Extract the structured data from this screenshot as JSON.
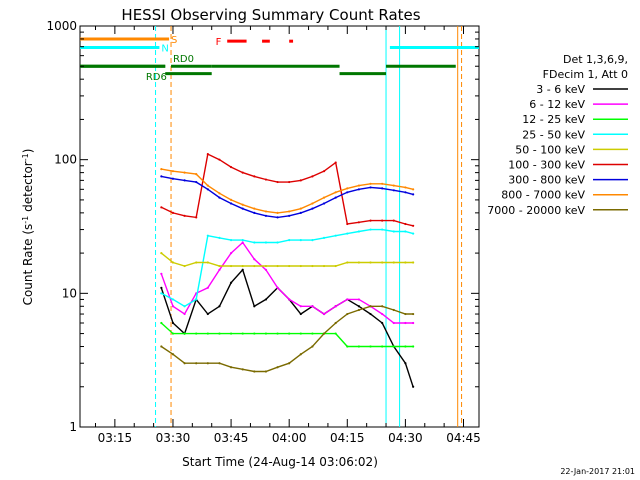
{
  "chart_data": {
    "type": "line",
    "title": "HESSI Observing Summary Count Rates",
    "xlabel": "Start Time (24-Aug-14 03:06:02)",
    "ylabel_main": "Count Rate (s",
    "ylabel_sup1": "-1",
    "ylabel_mid": " detector",
    "ylabel_sup2": "-1",
    "ylabel_end": ")",
    "yscale": "log",
    "ylim": [
      1,
      1000
    ],
    "xlim_minutes": [
      186,
      289
    ],
    "x_unit": "minutes of day (UT)",
    "x_ticks": [
      {
        "t": 195,
        "label": "03:15"
      },
      {
        "t": 210,
        "label": "03:30"
      },
      {
        "t": 225,
        "label": "03:45"
      },
      {
        "t": 240,
        "label": "04:00"
      },
      {
        "t": 255,
        "label": "04:15"
      },
      {
        "t": 270,
        "label": "04:30"
      },
      {
        "t": 285,
        "label": "04:45"
      }
    ],
    "y_ticks": [
      {
        "v": 1,
        "label": "1"
      },
      {
        "v": 10,
        "label": "10"
      },
      {
        "v": 100,
        "label": "100"
      },
      {
        "v": 1000,
        "label": "1000"
      }
    ],
    "legend_header": [
      "Det 1,3,6,9,",
      "FDecim 1, Att 0"
    ],
    "legend_position": "right",
    "series": [
      {
        "name": "3 - 6 keV",
        "color": "#000000",
        "x": [
          207,
          210,
          213,
          216,
          219,
          222,
          225,
          228,
          231,
          234,
          237,
          240,
          243,
          246,
          249,
          252,
          255,
          258,
          261,
          264,
          267,
          270,
          272
        ],
        "values": [
          11,
          6,
          5,
          9,
          7,
          8,
          12,
          15,
          8,
          9,
          11,
          9,
          7,
          8,
          7,
          8,
          9,
          8,
          7,
          6,
          4,
          3,
          2
        ]
      },
      {
        "name": "6 - 12 keV",
        "color": "#ff00ff",
        "x": [
          207,
          210,
          213,
          216,
          219,
          222,
          225,
          228,
          231,
          234,
          237,
          240,
          243,
          246,
          249,
          252,
          255,
          258,
          261,
          264,
          267,
          270,
          272
        ],
        "values": [
          14,
          8,
          7,
          10,
          11,
          15,
          20,
          24,
          18,
          15,
          11,
          9,
          8,
          8,
          7,
          8,
          9,
          9,
          8,
          7,
          6,
          6,
          6
        ]
      },
      {
        "name": "12 - 25 keV",
        "color": "#00ff00",
        "x": [
          207,
          210,
          213,
          216,
          219,
          222,
          225,
          228,
          231,
          234,
          237,
          240,
          243,
          246,
          249,
          252,
          255,
          258,
          261,
          264,
          267,
          270,
          272
        ],
        "values": [
          6,
          5,
          5,
          5,
          5,
          5,
          5,
          5,
          5,
          5,
          5,
          5,
          5,
          5,
          5,
          5,
          4,
          4,
          4,
          4,
          4,
          4,
          4
        ]
      },
      {
        "name": "25 - 50 keV",
        "color": "#00ffff",
        "x": [
          207,
          210,
          213,
          216,
          219,
          222,
          225,
          228,
          231,
          234,
          237,
          240,
          243,
          246,
          249,
          252,
          255,
          258,
          261,
          264,
          267,
          270,
          272
        ],
        "values": [
          10,
          9,
          8,
          9,
          27,
          26,
          25,
          25,
          24,
          24,
          24,
          25,
          25,
          25,
          26,
          27,
          28,
          29,
          30,
          30,
          29,
          29,
          28
        ]
      },
      {
        "name": "50 - 100 keV",
        "color": "#cccc00",
        "x": [
          207,
          210,
          213,
          216,
          219,
          222,
          225,
          228,
          231,
          234,
          237,
          240,
          243,
          246,
          249,
          252,
          255,
          258,
          261,
          264,
          267,
          270,
          272
        ],
        "values": [
          20,
          17,
          16,
          17,
          17,
          16,
          16,
          16,
          16,
          16,
          16,
          16,
          16,
          16,
          16,
          16,
          17,
          17,
          17,
          17,
          17,
          17,
          17
        ]
      },
      {
        "name": "100 - 300 keV",
        "color": "#dd0000",
        "x": [
          207,
          210,
          213,
          216,
          219,
          222,
          225,
          228,
          231,
          234,
          237,
          240,
          243,
          246,
          249,
          252,
          255,
          258,
          261,
          264,
          267,
          270,
          272
        ],
        "values": [
          44,
          40,
          38,
          37,
          110,
          100,
          88,
          80,
          75,
          71,
          68,
          68,
          70,
          75,
          82,
          95,
          33,
          34,
          35,
          35,
          35,
          33,
          32
        ]
      },
      {
        "name": "300 - 800 keV",
        "color": "#0000dd",
        "x": [
          207,
          210,
          213,
          216,
          219,
          222,
          225,
          228,
          231,
          234,
          237,
          240,
          243,
          246,
          249,
          252,
          255,
          258,
          261,
          264,
          267,
          270,
          272
        ],
        "values": [
          75,
          72,
          70,
          68,
          60,
          52,
          47,
          43,
          40,
          38,
          37,
          38,
          40,
          43,
          47,
          52,
          57,
          60,
          62,
          61,
          59,
          57,
          55
        ]
      },
      {
        "name": "800 - 7000 keV",
        "color": "#ff8800",
        "x": [
          207,
          210,
          213,
          216,
          219,
          222,
          225,
          228,
          231,
          234,
          237,
          240,
          243,
          246,
          249,
          252,
          255,
          258,
          261,
          264,
          267,
          270,
          272
        ],
        "values": [
          85,
          82,
          80,
          78,
          64,
          56,
          50,
          46,
          43,
          41,
          40,
          41,
          43,
          47,
          52,
          57,
          61,
          64,
          66,
          66,
          64,
          62,
          60
        ]
      },
      {
        "name": "7000 - 20000 keV",
        "color": "#7a6a00",
        "x": [
          207,
          210,
          213,
          216,
          219,
          222,
          225,
          228,
          231,
          234,
          237,
          240,
          243,
          246,
          249,
          252,
          255,
          258,
          261,
          264,
          267,
          270,
          272
        ],
        "values": [
          4,
          3.5,
          3,
          3,
          3,
          3,
          2.8,
          2.7,
          2.6,
          2.6,
          2.8,
          3,
          3.5,
          4,
          5,
          6,
          7,
          7.5,
          8,
          8,
          7.5,
          7,
          7
        ]
      }
    ],
    "annotations": [
      {
        "label": "S",
        "color": "#ff8800",
        "y": 800,
        "x0": 186,
        "x1": 209,
        "text_x": 209.5
      },
      {
        "label": "N",
        "color": "#00ffff",
        "y": 690,
        "x0": 186,
        "x1": 206.5,
        "text_x": 207
      },
      {
        "label": "RD0",
        "color": "#007700",
        "y": 500,
        "x0": 209.5,
        "x1": 220,
        "text_x": 210
      },
      {
        "label": "RD6",
        "color": "#007700",
        "y": 500,
        "x0": 186,
        "x1": 208,
        "text_x": 203
      },
      {
        "label": "F",
        "color": "#ff0000",
        "y": 770,
        "x0": 223.5,
        "x1": 223.5,
        "text_x": 221
      }
    ],
    "segments": [
      {
        "color": "#007700",
        "y": 500,
        "x0": 186,
        "x1": 208
      },
      {
        "color": "#007700",
        "y": 440,
        "x0": 208,
        "x1": 220
      },
      {
        "color": "#007700",
        "y": 500,
        "x0": 220,
        "x1": 253
      },
      {
        "color": "#007700",
        "y": 440,
        "x0": 253,
        "x1": 265
      },
      {
        "color": "#007700",
        "y": 500,
        "x0": 265,
        "x1": 283
      },
      {
        "color": "#00ffff",
        "y": 690,
        "x0": 266,
        "x1": 289
      },
      {
        "color": "#ff0000",
        "y": 770,
        "x0": 224,
        "x1": 229
      },
      {
        "color": "#ff0000",
        "y": 770,
        "x0": 233,
        "x1": 235
      },
      {
        "color": "#ff0000",
        "y": 770,
        "x0": 240,
        "x1": 241
      }
    ],
    "vlines": [
      {
        "t": 205.5,
        "color": "#00ffff",
        "dash": true
      },
      {
        "t": 209.5,
        "color": "#ff8800",
        "dash": true
      },
      {
        "t": 265,
        "color": "#00ffff",
        "dash": false
      },
      {
        "t": 268.5,
        "color": "#00ffff",
        "dash": false
      },
      {
        "t": 283.5,
        "color": "#ff8800",
        "dash": false
      },
      {
        "t": 284.5,
        "color": "#ff8800",
        "dash": true
      }
    ],
    "grid": false
  },
  "footer_timestamp": "22-Jan-2017 21:01"
}
